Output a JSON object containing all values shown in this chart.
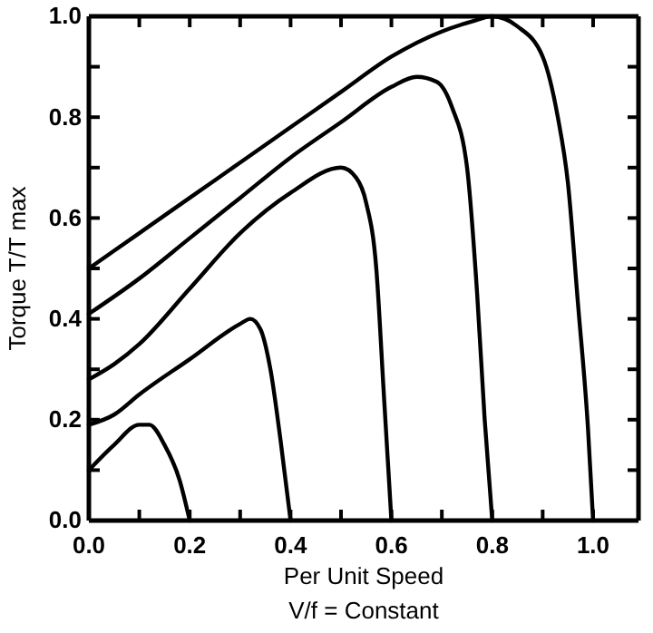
{
  "chart_data": {
    "type": "line",
    "xlabel": "Per Unit Speed",
    "ylabel": "Torque T/T max",
    "annotations": [
      "V/f = Constant"
    ],
    "xlim": [
      0,
      1.09
    ],
    "ylim": [
      0,
      1.0
    ],
    "xticks": [
      {
        "value": 0,
        "label": "0.0"
      },
      {
        "value": 0.1,
        "label": null
      },
      {
        "value": 0.2,
        "label": "0.2"
      },
      {
        "value": 0.3,
        "label": null
      },
      {
        "value": 0.4,
        "label": "0.4"
      },
      {
        "value": 0.5,
        "label": null
      },
      {
        "value": 0.6,
        "label": "0.6"
      },
      {
        "value": 0.7,
        "label": null
      },
      {
        "value": 0.8,
        "label": "0.8"
      },
      {
        "value": 0.9,
        "label": null
      },
      {
        "value": 1.0,
        "label": "1.0"
      }
    ],
    "yticks": [
      {
        "value": 0,
        "label": "0.0"
      },
      {
        "value": 0.1,
        "label": null
      },
      {
        "value": 0.2,
        "label": "0.2"
      },
      {
        "value": 0.3,
        "label": null
      },
      {
        "value": 0.4,
        "label": "0.4"
      },
      {
        "value": 0.5,
        "label": null
      },
      {
        "value": 0.6,
        "label": "0.6"
      },
      {
        "value": 0.7,
        "label": null
      },
      {
        "value": 0.8,
        "label": "0.8"
      },
      {
        "value": 0.9,
        "label": null
      },
      {
        "value": 1.0,
        "label": "1.0"
      }
    ],
    "series": [
      {
        "color": "#000000",
        "x": [
          0,
          0.1,
          0.2,
          0.3,
          0.4,
          0.5,
          0.6,
          0.7,
          0.76,
          0.8,
          0.85,
          0.9,
          0.93,
          0.95,
          0.97,
          0.99,
          1.0
        ],
        "values": [
          0.5,
          0.57,
          0.64,
          0.71,
          0.78,
          0.85,
          0.92,
          0.97,
          0.99,
          1.0,
          0.98,
          0.92,
          0.8,
          0.67,
          0.43,
          0.18,
          0
        ]
      },
      {
        "color": "#000000",
        "x": [
          0,
          0.1,
          0.2,
          0.3,
          0.4,
          0.5,
          0.6,
          0.65,
          0.69,
          0.72,
          0.75,
          0.77,
          0.785,
          0.8
        ],
        "values": [
          0.41,
          0.48,
          0.56,
          0.64,
          0.72,
          0.79,
          0.86,
          0.88,
          0.87,
          0.82,
          0.7,
          0.45,
          0.2,
          0
        ]
      },
      {
        "color": "#000000",
        "x": [
          0,
          0.05,
          0.1,
          0.2,
          0.3,
          0.4,
          0.5,
          0.53,
          0.55,
          0.57,
          0.585,
          0.6
        ],
        "values": [
          0.28,
          0.31,
          0.35,
          0.46,
          0.57,
          0.65,
          0.7,
          0.68,
          0.63,
          0.5,
          0.25,
          0
        ]
      },
      {
        "color": "#000000",
        "x": [
          0,
          0.05,
          0.1,
          0.2,
          0.3,
          0.32,
          0.34,
          0.36,
          0.38,
          0.4
        ],
        "values": [
          0.19,
          0.21,
          0.25,
          0.32,
          0.39,
          0.4,
          0.38,
          0.3,
          0.16,
          0
        ]
      },
      {
        "color": "#000000",
        "x": [
          0,
          0.05,
          0.1,
          0.12,
          0.15,
          0.18,
          0.2
        ],
        "values": [
          0.1,
          0.15,
          0.19,
          0.19,
          0.15,
          0.08,
          0
        ]
      }
    ]
  }
}
